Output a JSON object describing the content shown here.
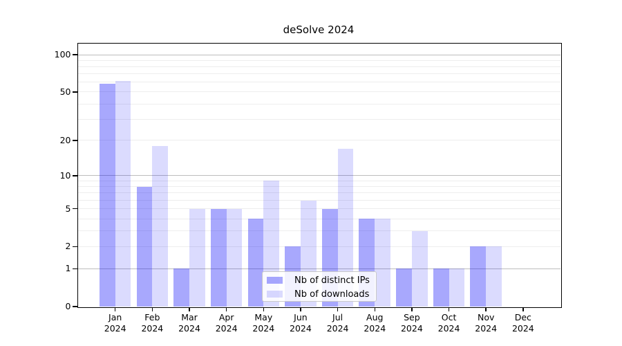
{
  "chart_data": {
    "type": "bar",
    "title": "deSolve 2024",
    "xlabel": "",
    "ylabel": "",
    "yscale": "log1p",
    "ylim": [
      0,
      124
    ],
    "y_ticks": [
      0,
      1,
      2,
      5,
      10,
      20,
      50,
      100
    ],
    "gridlines": {
      "major": [
        1,
        10,
        100
      ],
      "minor": [
        2,
        3,
        4,
        5,
        6,
        7,
        8,
        9,
        20,
        30,
        40,
        50,
        60,
        70,
        80,
        90
      ]
    },
    "grid": "horizontal",
    "legend_position": "inside-bottom-center",
    "months": [
      "Jan",
      "Feb",
      "Mar",
      "Apr",
      "May",
      "Jun",
      "Jul",
      "Aug",
      "Sep",
      "Oct",
      "Nov",
      "Dec"
    ],
    "year_label": "2024",
    "categories": [
      "Jan 2024",
      "Feb 2024",
      "Mar 2024",
      "Apr 2024",
      "May 2024",
      "Jun 2024",
      "Jul 2024",
      "Aug 2024",
      "Sep 2024",
      "Oct 2024",
      "Nov 2024",
      "Dec 2024"
    ],
    "series": [
      {
        "name": "Nb of distinct IPs",
        "key": "distinct-ips",
        "color": "rgba(0,0,250,0.34)",
        "values": [
          58,
          8,
          1,
          5,
          4,
          2,
          5,
          4,
          1,
          1,
          2,
          0
        ]
      },
      {
        "name": "Nb of downloads",
        "key": "downloads",
        "color": "rgba(0,0,250,0.14)",
        "values": [
          61,
          18,
          5,
          5,
          9,
          6,
          17,
          4,
          3,
          1,
          2,
          0
        ]
      }
    ]
  },
  "colors": {
    "bar_distinct_ips": "rgba(0,0,250,0.34)",
    "bar_downloads": "rgba(0,0,250,0.14)",
    "grid_major": "#bdbdbd",
    "grid_minor": "#ededed",
    "frame": "#000000",
    "text": "#000000",
    "legend_border": "#c9c9c9"
  }
}
